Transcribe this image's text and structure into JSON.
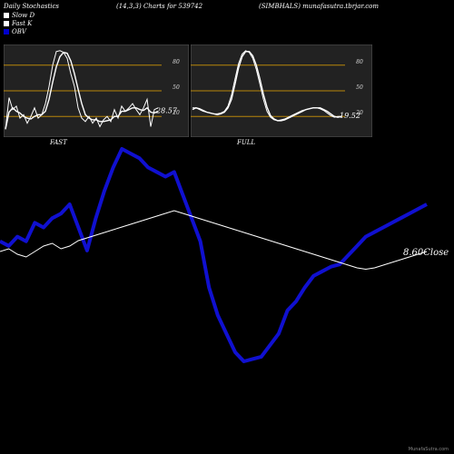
{
  "header": {
    "left": "Daily Stochastics",
    "center": "(14,3,3) Charts for 539742",
    "right": "(SIMBHALS) munafasutra.tbrjar.com"
  },
  "legend": [
    {
      "label": "Slow  D",
      "color": "#ffffff"
    },
    {
      "label": "Fast K",
      "color": "#ffffff"
    },
    {
      "label": "OBV",
      "color": "#0000cc"
    }
  ],
  "credit": "MunafaSutra.com",
  "colors": {
    "background": "#000000",
    "panel": "#222222",
    "level_line": "#b8860b",
    "price": "#ffffff",
    "obv": "#1010d0"
  },
  "chart_data": [
    {
      "type": "line",
      "name": "FAST",
      "ylim": [
        0,
        100
      ],
      "levels": [
        20,
        50,
        80
      ],
      "level_labels": [
        "80",
        "50",
        "20"
      ],
      "value_label": "28.57",
      "series": [
        {
          "values": [
            5,
            42,
            28,
            32,
            18,
            22,
            12,
            20,
            30,
            18,
            22,
            35,
            55,
            80,
            96,
            97,
            95,
            88,
            70,
            55,
            30,
            18,
            14,
            20,
            12,
            18,
            8,
            16,
            20,
            14,
            28,
            18,
            32,
            26,
            30,
            35,
            28,
            22,
            30,
            40,
            8,
            28,
            30
          ]
        },
        {
          "values": [
            5,
            25,
            30,
            26,
            24,
            20,
            18,
            17,
            20,
            22,
            22,
            26,
            40,
            60,
            78,
            90,
            95,
            94,
            85,
            70,
            52,
            35,
            22,
            18,
            16,
            16,
            14,
            14,
            15,
            16,
            20,
            20,
            26,
            26,
            28,
            30,
            30,
            28,
            27,
            30,
            25,
            24,
            26
          ]
        }
      ]
    },
    {
      "type": "line",
      "name": "FULL",
      "ylim": [
        0,
        100
      ],
      "levels": [
        20,
        50,
        80
      ],
      "level_labels": [
        "80",
        "50",
        "20"
      ],
      "value_label": "19.52",
      "series": [
        {
          "values": [
            30,
            30,
            28,
            26,
            25,
            24,
            23,
            23,
            24,
            26,
            32,
            45,
            64,
            82,
            93,
            97,
            95,
            88,
            75,
            58,
            40,
            26,
            19,
            16,
            15,
            16,
            17,
            19,
            21,
            23,
            25,
            27,
            28,
            29,
            30,
            30,
            29,
            27,
            24,
            21,
            19,
            20,
            20
          ]
        },
        {
          "values": [
            28,
            30,
            29,
            27,
            25,
            24,
            23,
            22,
            23,
            25,
            30,
            40,
            58,
            77,
            90,
            96,
            96,
            91,
            80,
            64,
            46,
            31,
            21,
            17,
            15,
            15,
            16,
            18,
            20,
            22,
            24,
            26,
            28,
            29,
            30,
            30,
            30,
            28,
            26,
            23,
            20,
            19,
            20
          ]
        }
      ]
    },
    {
      "type": "line",
      "name": "price-obv",
      "price_label": "8.60",
      "price_suffix": "Close",
      "series": [
        {
          "name": "OBV",
          "values": [
            60,
            58,
            62,
            60,
            68,
            66,
            70,
            72,
            76,
            66,
            56,
            70,
            82,
            92,
            100,
            98,
            96,
            92,
            90,
            88,
            90,
            80,
            70,
            60,
            40,
            28,
            20,
            12,
            8,
            9,
            10,
            15,
            20,
            30,
            34,
            40,
            45,
            47,
            49,
            50,
            54,
            58,
            62,
            64,
            66,
            68,
            70,
            72,
            74,
            76
          ]
        },
        {
          "values": [
            62,
            64,
            60,
            58,
            62,
            66,
            68,
            64,
            66,
            70,
            72,
            74,
            76,
            78,
            80,
            82,
            84,
            86,
            88,
            90,
            92,
            90,
            88,
            86,
            84,
            82,
            80,
            78,
            76,
            74,
            72,
            70,
            68,
            66,
            64,
            62,
            60,
            58,
            56,
            54,
            52,
            50,
            49,
            50,
            52,
            54,
            56,
            58,
            60,
            62
          ]
        }
      ]
    }
  ]
}
